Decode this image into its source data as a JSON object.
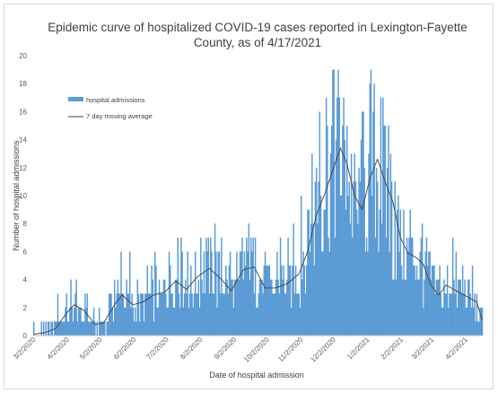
{
  "chart_data": {
    "type": "bar",
    "title_line1": "Epidemic curve of hospitalized COVID-19 cases reported in Lexington-Fayette",
    "title_line2": "County, as of 4/17/2021",
    "xlabel": "Date of hospital admission",
    "ylabel": "Number of hospital admissions",
    "ylim": [
      0,
      20
    ],
    "y_ticks": [
      0,
      2,
      4,
      6,
      8,
      10,
      12,
      14,
      16,
      18,
      20
    ],
    "x_tick_labels": [
      "3/2/2020",
      "4/2/2020",
      "5/2/2020",
      "6/2/2020",
      "7/2/2020",
      "8/2/2020",
      "9/2/2020",
      "10/2/2020",
      "11/2/2020",
      "12/2/2020",
      "1/2/2021",
      "2/2/2021",
      "3/2/2021",
      "4/2/2021"
    ],
    "x_range": [
      "2020-03-02",
      "2021-04-17"
    ],
    "grid": false,
    "legend_position": "upper-left",
    "colors": {
      "bars": "#5b9bd5",
      "line": "#404040"
    },
    "series": [
      {
        "name": "hospital admissions",
        "kind": "bar",
        "week_start_dates": [
          "2020-03-02",
          "2020-03-09",
          "2020-03-16",
          "2020-03-23",
          "2020-03-30",
          "2020-04-06",
          "2020-04-13",
          "2020-04-20",
          "2020-04-27",
          "2020-05-04",
          "2020-05-11",
          "2020-05-18",
          "2020-05-25",
          "2020-06-01",
          "2020-06-08",
          "2020-06-15",
          "2020-06-22",
          "2020-06-29",
          "2020-07-06",
          "2020-07-13",
          "2020-07-20",
          "2020-07-27",
          "2020-08-03",
          "2020-08-10",
          "2020-08-17",
          "2020-08-24",
          "2020-08-31",
          "2020-09-07",
          "2020-09-14",
          "2020-09-21",
          "2020-09-28",
          "2020-10-05",
          "2020-10-12",
          "2020-10-19",
          "2020-10-26",
          "2020-11-02",
          "2020-11-09",
          "2020-11-16",
          "2020-11-23",
          "2020-11-30",
          "2020-12-07",
          "2020-12-14",
          "2020-12-21",
          "2020-12-28",
          "2021-01-04",
          "2021-01-11",
          "2021-01-18",
          "2021-01-25",
          "2021-02-01",
          "2021-02-08",
          "2021-02-15",
          "2021-02-22",
          "2021-03-01",
          "2021-03-08",
          "2021-03-15",
          "2021-03-22",
          "2021-03-29",
          "2021-04-05",
          "2021-04-12"
        ],
        "weekly_avg": [
          0.3,
          0.4,
          0.5,
          1.0,
          1.8,
          2.1,
          1.5,
          1.2,
          0.7,
          1.0,
          2.2,
          2.8,
          2.4,
          2.0,
          2.3,
          3.0,
          2.6,
          3.2,
          3.8,
          4.0,
          3.3,
          4.2,
          4.5,
          4.8,
          4.2,
          3.8,
          3.2,
          4.8,
          5.0,
          4.2,
          3.5,
          3.2,
          3.8,
          3.6,
          4.2,
          5.8,
          8.5,
          10.5,
          11.8,
          13.0,
          12.5,
          10.2,
          8.8,
          10.8,
          12.2,
          11.5,
          9.8,
          7.2,
          5.8,
          5.5,
          5.2,
          4.2,
          3.2,
          2.8,
          3.6,
          3.2,
          3.0,
          2.6,
          1.6
        ],
        "weekly_peak": [
          1,
          1,
          1,
          3,
          4,
          4,
          3,
          3,
          2,
          3,
          4,
          6,
          6,
          4,
          5,
          6,
          5,
          6,
          7,
          7,
          6,
          7,
          7,
          8,
          7,
          6,
          6,
          7,
          8,
          7,
          6,
          6,
          7,
          7,
          8,
          10,
          13,
          16,
          17,
          19,
          17,
          15,
          14,
          16,
          19,
          17,
          15,
          11,
          9,
          9,
          8,
          7,
          5,
          5,
          7,
          6,
          5,
          5,
          3
        ]
      },
      {
        "name": "7 day moving average",
        "kind": "line",
        "points": [
          [
            "2020-03-02",
            0.1
          ],
          [
            "2020-03-12",
            0.2
          ],
          [
            "2020-03-22",
            0.5
          ],
          [
            "2020-04-01",
            1.6
          ],
          [
            "2020-04-08",
            2.2
          ],
          [
            "2020-04-17",
            1.8
          ],
          [
            "2020-04-27",
            0.8
          ],
          [
            "2020-05-05",
            0.9
          ],
          [
            "2020-05-15",
            2.2
          ],
          [
            "2020-05-22",
            2.9
          ],
          [
            "2020-06-01",
            2.2
          ],
          [
            "2020-06-10",
            2.4
          ],
          [
            "2020-06-20",
            2.9
          ],
          [
            "2020-06-30",
            3.1
          ],
          [
            "2020-07-10",
            3.9
          ],
          [
            "2020-07-20",
            3.3
          ],
          [
            "2020-07-30",
            4.2
          ],
          [
            "2020-08-10",
            4.8
          ],
          [
            "2020-08-20",
            4.1
          ],
          [
            "2020-08-30",
            3.2
          ],
          [
            "2020-09-10",
            4.7
          ],
          [
            "2020-09-20",
            4.9
          ],
          [
            "2020-09-30",
            3.4
          ],
          [
            "2020-10-10",
            3.4
          ],
          [
            "2020-10-20",
            3.7
          ],
          [
            "2020-10-31",
            4.4
          ],
          [
            "2020-11-08",
            6.0
          ],
          [
            "2020-11-16",
            8.6
          ],
          [
            "2020-11-24",
            10.2
          ],
          [
            "2020-12-01",
            11.8
          ],
          [
            "2020-12-08",
            13.4
          ],
          [
            "2020-12-14",
            12.3
          ],
          [
            "2020-12-21",
            10.0
          ],
          [
            "2020-12-28",
            9.0
          ],
          [
            "2021-01-04",
            11.2
          ],
          [
            "2021-01-11",
            12.6
          ],
          [
            "2021-01-18",
            11.0
          ],
          [
            "2021-01-25",
            9.6
          ],
          [
            "2021-02-01",
            7.0
          ],
          [
            "2021-02-08",
            5.9
          ],
          [
            "2021-02-15",
            5.6
          ],
          [
            "2021-02-22",
            5.1
          ],
          [
            "2021-03-01",
            3.6
          ],
          [
            "2021-03-08",
            2.9
          ],
          [
            "2021-03-15",
            3.6
          ],
          [
            "2021-03-22",
            3.3
          ],
          [
            "2021-03-29",
            3.0
          ],
          [
            "2021-04-05",
            2.7
          ],
          [
            "2021-04-12",
            2.4
          ],
          [
            "2021-04-17",
            1.1
          ]
        ]
      }
    ]
  }
}
